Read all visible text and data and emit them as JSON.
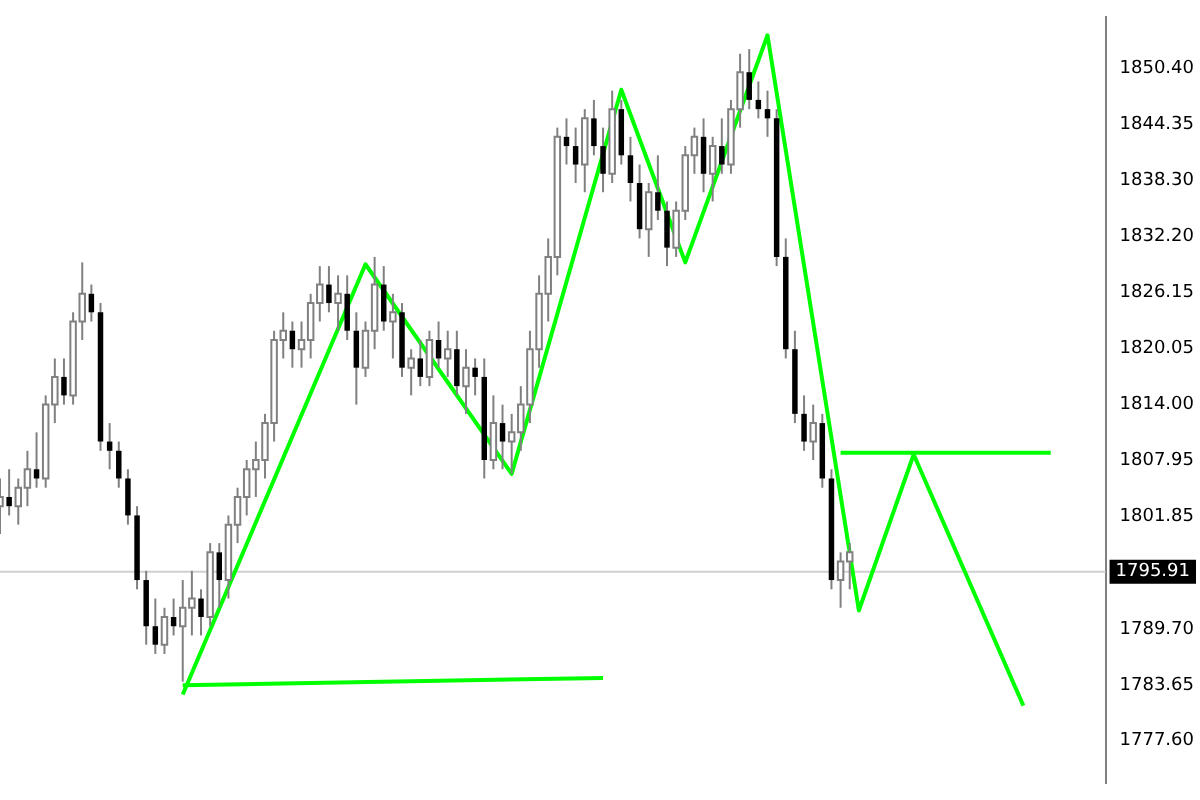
{
  "chart_data": {
    "type": "candlestick",
    "categories": [
      null,
      null,
      null,
      null,
      null,
      null,
      null,
      null,
      null,
      null,
      null,
      null,
      null,
      null,
      null,
      null,
      null,
      null,
      null,
      null,
      null,
      null,
      null,
      null,
      null,
      null,
      null,
      null,
      null,
      null,
      null,
      null,
      null,
      null,
      null,
      null,
      null,
      null,
      null,
      null,
      null,
      null,
      null,
      null,
      null,
      null,
      null,
      null,
      null,
      null,
      null,
      null,
      null,
      null,
      null,
      null,
      null,
      null,
      null,
      null,
      null,
      null,
      null,
      null,
      null,
      null,
      null,
      null,
      null,
      null,
      null,
      null,
      null,
      null,
      null,
      null,
      null,
      null,
      null,
      null,
      null,
      null,
      null,
      null,
      null,
      null,
      null,
      null,
      null,
      null,
      null,
      null,
      null,
      null,
      null,
      null,
      null,
      null,
      null,
      null,
      null,
      null,
      null,
      null,
      null,
      null,
      null,
      null,
      null,
      null,
      null,
      null,
      null,
      null,
      null,
      null,
      null,
      null,
      null,
      null,
      null,
      null
    ],
    "ohlc": [
      [
        1803,
        1806,
        1800,
        1804
      ],
      [
        1804,
        1807,
        1802,
        1803
      ],
      [
        1803,
        1806,
        1801,
        1805
      ],
      [
        1805,
        1809,
        1803,
        1807
      ],
      [
        1807,
        1811,
        1805,
        1806
      ],
      [
        1806,
        1815,
        1805,
        1814
      ],
      [
        1814,
        1819,
        1812,
        1817
      ],
      [
        1817,
        1819,
        1814,
        1815
      ],
      [
        1815,
        1824,
        1814,
        1823
      ],
      [
        1823,
        1829.4,
        1821,
        1826
      ],
      [
        1826,
        1827,
        1823,
        1824
      ],
      [
        1824,
        1825,
        1809,
        1810
      ],
      [
        1810,
        1812,
        1807,
        1809
      ],
      [
        1809,
        1810,
        1805,
        1806
      ],
      [
        1806,
        1807,
        1801,
        1802
      ],
      [
        1802,
        1803,
        1794,
        1795
      ],
      [
        1795,
        1796,
        1788,
        1790
      ],
      [
        1790,
        1793,
        1787,
        1788
      ],
      [
        1788,
        1792,
        1787,
        1791
      ],
      [
        1791,
        1793,
        1789,
        1790
      ],
      [
        1790,
        1795,
        1784,
        1792
      ],
      [
        1792,
        1796,
        1789,
        1793
      ],
      [
        1793,
        1794,
        1789,
        1791
      ],
      [
        1791,
        1799,
        1790,
        1798
      ],
      [
        1798,
        1799,
        1792,
        1795
      ],
      [
        1795,
        1802,
        1793,
        1801
      ],
      [
        1801,
        1805,
        1799,
        1804
      ],
      [
        1804,
        1808,
        1802,
        1807
      ],
      [
        1807,
        1810,
        1804,
        1808
      ],
      [
        1808,
        1813,
        1806,
        1812
      ],
      [
        1812,
        1822,
        1810,
        1821
      ],
      [
        1821,
        1824,
        1819,
        1822
      ],
      [
        1822,
        1823,
        1818,
        1820
      ],
      [
        1820,
        1823,
        1818,
        1821
      ],
      [
        1821,
        1826,
        1819,
        1825
      ],
      [
        1825,
        1829,
        1823,
        1827
      ],
      [
        1827,
        1829,
        1824,
        1825
      ],
      [
        1825,
        1828,
        1822,
        1826
      ],
      [
        1826,
        1828,
        1821,
        1822
      ],
      [
        1822,
        1824,
        1814,
        1818
      ],
      [
        1818,
        1823,
        1817,
        1822
      ],
      [
        1822,
        1830,
        1820,
        1827
      ],
      [
        1827,
        1829,
        1822,
        1823
      ],
      [
        1823,
        1826,
        1819,
        1824
      ],
      [
        1824,
        1825,
        1817,
        1818
      ],
      [
        1818,
        1820,
        1815,
        1819
      ],
      [
        1819,
        1821,
        1816,
        1817
      ],
      [
        1817,
        1822,
        1816,
        1821
      ],
      [
        1821,
        1823,
        1818,
        1819
      ],
      [
        1819,
        1822,
        1817,
        1820
      ],
      [
        1820,
        1822,
        1815,
        1816
      ],
      [
        1816,
        1820,
        1813,
        1818
      ],
      [
        1818,
        1819,
        1815,
        1817
      ],
      [
        1817,
        1819,
        1806,
        1808
      ],
      [
        1808,
        1815,
        1807,
        1812
      ],
      [
        1812,
        1814,
        1807,
        1810
      ],
      [
        1810,
        1813,
        1806.5,
        1811
      ],
      [
        1811,
        1816,
        1809,
        1814
      ],
      [
        1814,
        1822,
        1812,
        1820
      ],
      [
        1820,
        1828,
        1818,
        1826
      ],
      [
        1826,
        1832,
        1823,
        1830
      ],
      [
        1830,
        1844,
        1828,
        1843
      ],
      [
        1843,
        1845,
        1840,
        1842
      ],
      [
        1842,
        1844,
        1838,
        1840
      ],
      [
        1840,
        1846,
        1837,
        1845
      ],
      [
        1845,
        1847,
        1841,
        1842
      ],
      [
        1842,
        1844,
        1837,
        1839
      ],
      [
        1839,
        1848,
        1838,
        1846
      ],
      [
        1846,
        1847,
        1840,
        1841
      ],
      [
        1841,
        1843,
        1836,
        1838
      ],
      [
        1838,
        1840,
        1832,
        1833
      ],
      [
        1833,
        1838,
        1830,
        1837
      ],
      [
        1837,
        1841,
        1834,
        1835
      ],
      [
        1835,
        1836,
        1829,
        1831
      ],
      [
        1831,
        1836,
        1830,
        1835
      ],
      [
        1835,
        1842,
        1834,
        1841
      ],
      [
        1841,
        1844,
        1839,
        1843
      ],
      [
        1843,
        1845,
        1837,
        1839
      ],
      [
        1839,
        1843,
        1836,
        1842
      ],
      [
        1842,
        1845,
        1839,
        1840
      ],
      [
        1840,
        1847,
        1839,
        1846
      ],
      [
        1846,
        1852,
        1844,
        1850
      ],
      [
        1850,
        1852.5,
        1846,
        1847
      ],
      [
        1847,
        1849,
        1845,
        1846
      ],
      [
        1846,
        1848,
        1843,
        1845
      ],
      [
        1845,
        1846,
        1829,
        1830
      ],
      [
        1830,
        1832,
        1819,
        1820
      ],
      [
        1820,
        1822,
        1812,
        1813
      ],
      [
        1813,
        1815,
        1809,
        1810
      ],
      [
        1810,
        1814,
        1808,
        1812
      ],
      [
        1812,
        1813,
        1805,
        1806
      ],
      [
        1806,
        1807,
        1794,
        1795
      ],
      [
        1795,
        1798,
        1792,
        1797
      ],
      [
        1797,
        1799,
        1794,
        1798
      ],
      null,
      null,
      null,
      null,
      null,
      null,
      null,
      null,
      null,
      null,
      null,
      null,
      null,
      null,
      null,
      null,
      null,
      null,
      null,
      null,
      null,
      null,
      null,
      null,
      null,
      null,
      null,
      null
    ],
    "series": [
      {
        "type": "line",
        "color": "#00ff00",
        "values": [
          null,
          null,
          null,
          null,
          null,
          null,
          null,
          null,
          null,
          null,
          null,
          null,
          null,
          null,
          null,
          null,
          null,
          null,
          null,
          null,
          1782.6,
          null,
          null,
          null,
          null,
          null,
          null,
          null,
          null,
          null,
          null,
          null,
          null,
          null,
          null,
          null,
          null,
          null,
          null,
          null,
          1829.2,
          null,
          null,
          null,
          null,
          null,
          null,
          null,
          null,
          null,
          null,
          null,
          null,
          null,
          null,
          null,
          1806.5,
          null,
          null,
          null,
          null,
          null,
          null,
          null,
          null,
          null,
          null,
          null,
          1848.1,
          null,
          null,
          null,
          null,
          null,
          null,
          1829.4,
          null,
          null,
          null,
          null,
          null,
          null,
          null,
          null,
          1854,
          null,
          null,
          null,
          null,
          null,
          null,
          null,
          null,
          null,
          1791.7,
          null,
          null,
          null,
          null,
          null,
          1808.6,
          null,
          null,
          null,
          null,
          null,
          null,
          null,
          null,
          null,
          null,
          null,
          1781.4,
          null,
          null,
          null,
          null,
          null,
          null,
          null,
          null,
          null
        ]
      },
      {
        "type": "line",
        "color": "#00ff00",
        "values": [
          null,
          null,
          null,
          null,
          null,
          null,
          null,
          null,
          null,
          null,
          null,
          null,
          null,
          null,
          null,
          null,
          null,
          null,
          null,
          null,
          1783.6,
          null,
          null,
          null,
          null,
          null,
          null,
          null,
          null,
          null,
          null,
          null,
          null,
          null,
          null,
          null,
          null,
          null,
          null,
          null,
          null,
          null,
          null,
          null,
          null,
          null,
          null,
          null,
          null,
          null,
          null,
          null,
          null,
          null,
          null,
          null,
          null,
          null,
          null,
          null,
          null,
          null,
          null,
          null,
          null,
          null,
          1784.4,
          null,
          null,
          null,
          null,
          null,
          null,
          null,
          null,
          null,
          null,
          null,
          null,
          null,
          null,
          null,
          null,
          null,
          null,
          null,
          null,
          null,
          null,
          null,
          null,
          null,
          null,
          null,
          null,
          null,
          null,
          null,
          null,
          null,
          null,
          null,
          null,
          null,
          null,
          null,
          null,
          null,
          null,
          null,
          null,
          null,
          null,
          null,
          null,
          null,
          null,
          null,
          null,
          null,
          null,
          null
        ]
      },
      {
        "type": "line",
        "color": "#00ff00",
        "values": [
          null,
          null,
          null,
          null,
          null,
          null,
          null,
          null,
          null,
          null,
          null,
          null,
          null,
          null,
          null,
          null,
          null,
          null,
          null,
          null,
          null,
          null,
          null,
          null,
          null,
          null,
          null,
          null,
          null,
          null,
          null,
          null,
          null,
          null,
          null,
          null,
          null,
          null,
          null,
          null,
          null,
          null,
          null,
          null,
          null,
          null,
          null,
          null,
          null,
          null,
          null,
          null,
          null,
          null,
          null,
          null,
          null,
          null,
          null,
          null,
          null,
          null,
          null,
          null,
          null,
          null,
          null,
          null,
          null,
          null,
          null,
          null,
          null,
          null,
          null,
          null,
          null,
          null,
          null,
          null,
          null,
          null,
          null,
          null,
          null,
          null,
          null,
          null,
          null,
          null,
          null,
          null,
          1808.8,
          null,
          null,
          null,
          null,
          null,
          null,
          null,
          null,
          null,
          null,
          null,
          null,
          null,
          null,
          null,
          null,
          null,
          null,
          null,
          null,
          null,
          null,
          1808.8,
          null,
          null,
          null,
          null,
          null,
          null
        ]
      }
    ],
    "ylim": [
      1773,
      1856
    ],
    "yticks": [
      {
        "value": 1777.6,
        "label": "1777.60"
      },
      {
        "value": 1783.65,
        "label": "1783.65"
      },
      {
        "value": 1789.7,
        "label": "1789.70"
      },
      {
        "value": 1801.85,
        "label": "1801.85"
      },
      {
        "value": 1807.95,
        "label": "1807.95"
      },
      {
        "value": 1814,
        "label": "1814.00"
      },
      {
        "value": 1820.05,
        "label": "1820.05"
      },
      {
        "value": 1826.15,
        "label": "1826.15"
      },
      {
        "value": 1832.2,
        "label": "1832.20"
      },
      {
        "value": 1838.3,
        "label": "1838.30"
      },
      {
        "value": 1844.35,
        "label": "1844.35"
      },
      {
        "value": 1850.4,
        "label": "1850.40"
      }
    ],
    "ref_lines": [
      {
        "axis": "y",
        "value": 1795.91,
        "label": "1795.91",
        "color": "#d0d0d0"
      }
    ],
    "tick_labels": "y",
    "grid": false,
    "legend": false
  }
}
